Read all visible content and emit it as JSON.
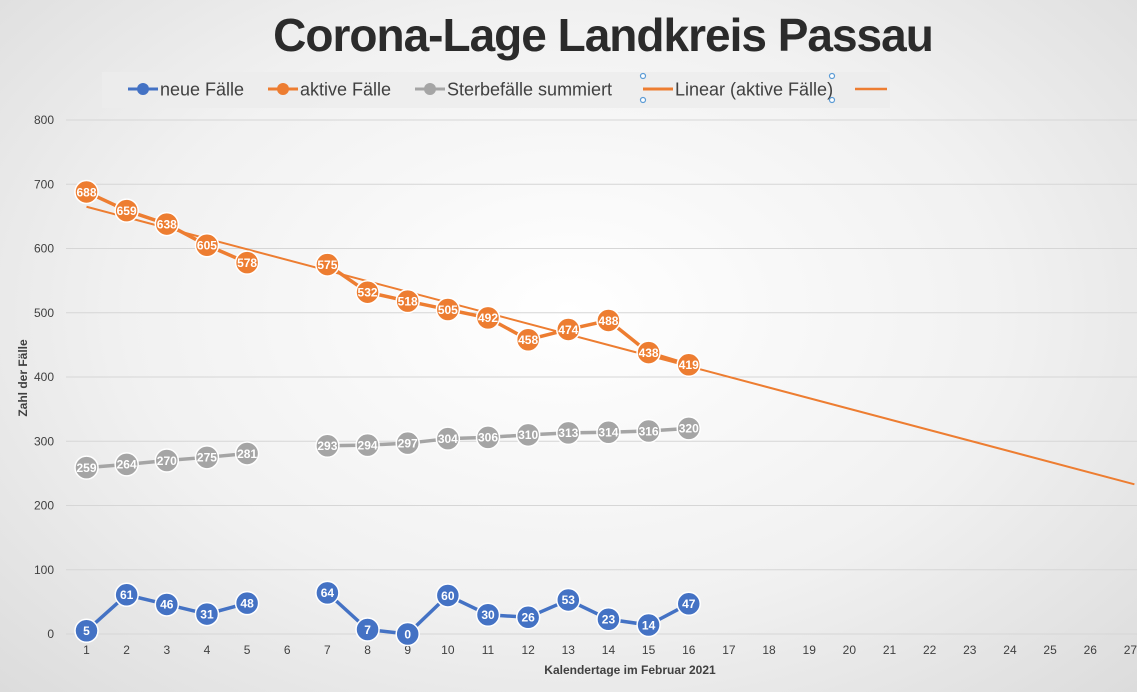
{
  "chart_data": {
    "type": "line",
    "title": "Corona-Lage Landkreis Passau",
    "xlabel": "Kalendertage im Februar 2021",
    "ylabel": "Zahl der Fälle",
    "ylim": [
      0,
      800
    ],
    "yticks": [
      0,
      100,
      200,
      300,
      400,
      500,
      600,
      700,
      800
    ],
    "xlim": [
      1,
      27
    ],
    "xticks": [
      "1",
      "2",
      "3",
      "4",
      "5",
      "6",
      "7",
      "8",
      "9",
      "10",
      "11",
      "12",
      "13",
      "14",
      "15",
      "16",
      "17",
      "18",
      "19",
      "20",
      "21",
      "22",
      "23",
      "24",
      "25",
      "26",
      "27"
    ],
    "grid": true,
    "legend_position": "top",
    "series": [
      {
        "name": "neue Fälle",
        "color": "#4472C4",
        "segments": [
          {
            "x": [
              1,
              2,
              3,
              4,
              5
            ],
            "y": [
              5,
              61,
              46,
              31,
              48
            ]
          },
          {
            "x": [
              7,
              8,
              9,
              10,
              11,
              12,
              13,
              14,
              15,
              16
            ],
            "y": [
              64,
              7,
              0,
              60,
              30,
              26,
              53,
              23,
              14,
              47
            ]
          }
        ]
      },
      {
        "name": "aktive Fälle",
        "color": "#ED7D31",
        "segments": [
          {
            "x": [
              1,
              2,
              3,
              4,
              5
            ],
            "y": [
              688,
              659,
              638,
              605,
              578
            ]
          },
          {
            "x": [
              7,
              8,
              9,
              10,
              11,
              12,
              13,
              14,
              15,
              16
            ],
            "y": [
              575,
              532,
              518,
              505,
              492,
              458,
              474,
              488,
              438,
              419
            ]
          }
        ]
      },
      {
        "name": "Sterbefälle summiert",
        "color": "#A5A5A5",
        "segments": [
          {
            "x": [
              1,
              2,
              3,
              4,
              5
            ],
            "y": [
              259,
              264,
              270,
              275,
              281
            ]
          },
          {
            "x": [
              7,
              8,
              9,
              10,
              11,
              12,
              13,
              14,
              15,
              16
            ],
            "y": [
              293,
              294,
              297,
              304,
              306,
              310,
              313,
              314,
              316,
              320
            ]
          }
        ]
      }
    ],
    "trendline": {
      "name": "Linear (aktive Fälle)",
      "color": "#ED7D31",
      "x": [
        1,
        27.1
      ],
      "y": [
        665,
        233
      ]
    }
  }
}
